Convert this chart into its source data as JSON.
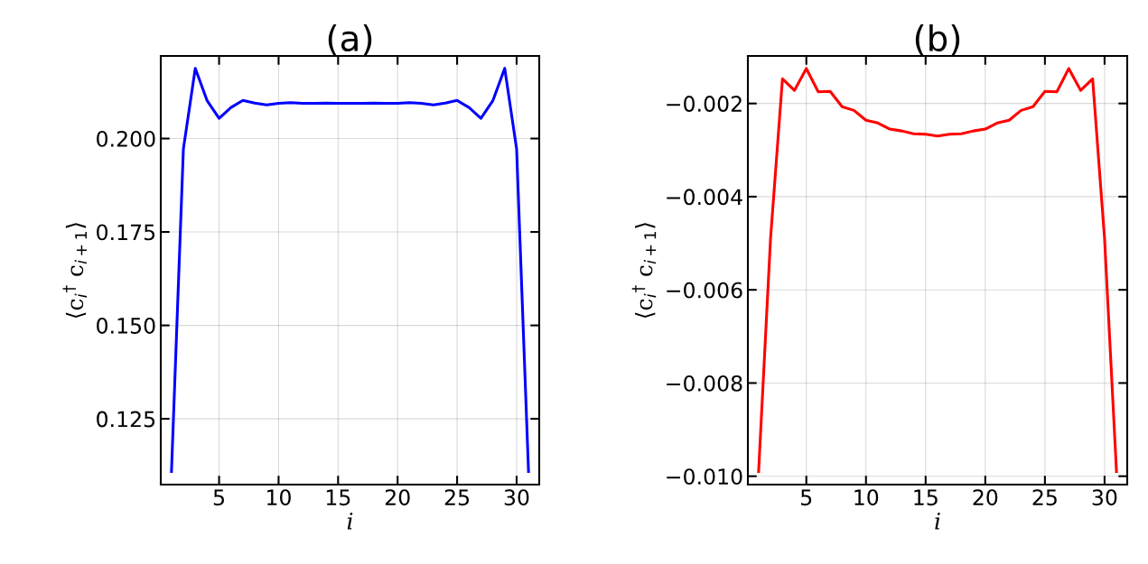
{
  "chart_data": [
    {
      "type": "line",
      "title": "(a)",
      "xlabel": "i",
      "ylabel": "⟨c$_{i}$$^{†}$ c$_{i+1}$⟩",
      "grid": true,
      "line_style": "solid",
      "x": [
        1,
        2,
        3,
        4,
        5,
        6,
        7,
        8,
        9,
        10,
        11,
        12,
        13,
        14,
        15,
        16,
        17,
        18,
        19,
        20,
        21,
        22,
        23,
        24,
        25,
        26,
        27,
        28,
        29,
        30,
        31
      ],
      "series": [
        {
          "color": "#0000ff",
          "values": [
            0.1109,
            0.1972,
            0.2188,
            0.2101,
            0.2054,
            0.2083,
            0.2102,
            0.2095,
            0.209,
            0.2094,
            0.2096,
            0.2094,
            0.2094,
            0.2095,
            0.2094,
            0.2094,
            0.2094,
            0.2095,
            0.2094,
            0.2094,
            0.2096,
            0.2094,
            0.209,
            0.2095,
            0.2102,
            0.2083,
            0.2054,
            0.2101,
            0.2188,
            0.1972,
            0.1109
          ]
        }
      ],
      "xlim": [
        0.1,
        31.9
      ],
      "xticks": [
        5,
        10,
        15,
        20,
        25,
        30
      ],
      "ylim": [
        0.1074,
        0.2221
      ],
      "yticks": [
        {
          "value": 0.125,
          "label": "0.125"
        },
        {
          "value": 0.15,
          "label": "0.150"
        },
        {
          "value": 0.175,
          "label": "0.175"
        },
        {
          "value": 0.2,
          "label": "0.200"
        }
      ]
    },
    {
      "type": "line",
      "title": "(b)",
      "xlabel": "i",
      "ylabel": "⟨c$_{i}$$^{†}$ c$_{i+1}$⟩",
      "grid": true,
      "line_style": "solid",
      "x": [
        1,
        2,
        3,
        4,
        5,
        6,
        7,
        8,
        9,
        10,
        11,
        12,
        13,
        14,
        15,
        16,
        17,
        18,
        19,
        20,
        21,
        22,
        23,
        24,
        25,
        26,
        27,
        28,
        29,
        30,
        31
      ],
      "series": [
        {
          "color": "#ff0000",
          "values": [
            -0.0099,
            -0.0049,
            -0.00147,
            -0.00172,
            -0.00125,
            -0.00175,
            -0.00174,
            -0.00207,
            -0.00215,
            -0.00236,
            -0.00242,
            -0.00255,
            -0.00259,
            -0.00265,
            -0.00266,
            -0.0027,
            -0.00266,
            -0.00265,
            -0.00259,
            -0.00255,
            -0.00242,
            -0.00236,
            -0.00215,
            -0.00207,
            -0.00174,
            -0.00175,
            -0.00125,
            -0.00172,
            -0.00147,
            -0.0049,
            -0.0099
          ]
        }
      ],
      "xlim": [
        0.1,
        31.9
      ],
      "xticks": [
        5,
        10,
        15,
        20,
        25,
        30
      ],
      "ylim": [
        -0.01018,
        -0.00098
      ],
      "yticks": [
        {
          "value": -0.01,
          "label": "−0.010"
        },
        {
          "value": -0.008,
          "label": "−0.008"
        },
        {
          "value": -0.006,
          "label": "−0.006"
        },
        {
          "value": -0.004,
          "label": "−0.004"
        },
        {
          "value": -0.002,
          "label": "−0.002"
        }
      ]
    }
  ]
}
